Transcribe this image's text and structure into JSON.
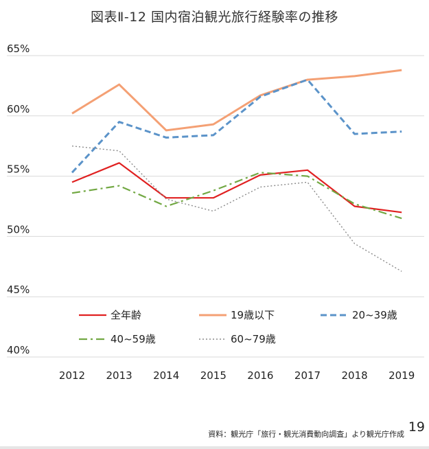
{
  "page": {
    "number": "19",
    "source_note": "資料：観光庁「旅行・観光消費動向調査」より観光庁作成"
  },
  "chart_data": {
    "type": "line",
    "title": "図表Ⅱ-12 国内宿泊観光旅行経験率の推移",
    "xlabel": "",
    "ylabel": "",
    "categories": [
      "2012",
      "2013",
      "2014",
      "2015",
      "2016",
      "2017",
      "2018",
      "2019"
    ],
    "y_ticks": [
      "40%",
      "45%",
      "50%",
      "55%",
      "60%",
      "65%"
    ],
    "ylim": [
      40,
      65
    ],
    "grid": "horizontal",
    "legend_position": "bottom-inside",
    "series": [
      {
        "name": "全年齢",
        "values": [
          54.5,
          56.1,
          53.2,
          53.2,
          55.1,
          55.5,
          52.5,
          52.0
        ],
        "color": "#e02020",
        "style": "solid"
      },
      {
        "name": "19歳以下",
        "values": [
          60.2,
          62.6,
          58.8,
          59.3,
          61.7,
          63.0,
          63.3,
          63.8
        ],
        "color": "#f4a074",
        "style": "solid"
      },
      {
        "name": "20~39歳",
        "values": [
          55.3,
          59.5,
          58.2,
          58.4,
          61.6,
          63.0,
          58.5,
          58.7
        ],
        "color": "#5b93c9",
        "style": "dashed"
      },
      {
        "name": "40~59歳",
        "values": [
          53.6,
          54.2,
          52.5,
          53.8,
          55.3,
          55.0,
          52.7,
          51.5
        ],
        "color": "#72a843",
        "style": "dashdot"
      },
      {
        "name": "60~79歳",
        "values": [
          57.5,
          57.1,
          53.1,
          52.1,
          54.1,
          54.5,
          49.4,
          47.1
        ],
        "color": "#8a8a8a",
        "style": "dotted"
      }
    ]
  }
}
